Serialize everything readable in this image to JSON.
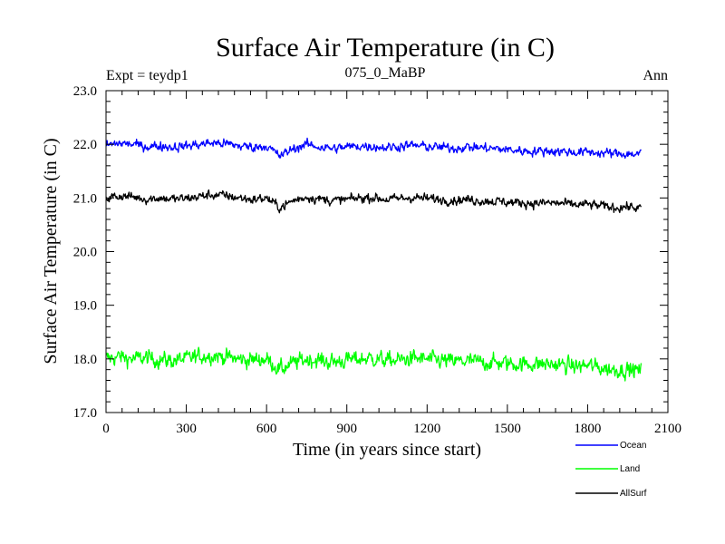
{
  "chart_data": {
    "type": "line",
    "title": "Surface Air Temperature (in C)",
    "subtitle": "075_0_MaBP",
    "left_label": "Expt = teydp1",
    "right_label": "Ann",
    "xlabel": "Time (in years since start)",
    "ylabel": "Surface Air Temperature (in C)",
    "xlim": [
      0,
      2100
    ],
    "ylim": [
      17.0,
      23.0
    ],
    "x_ticks": [
      "0",
      "300",
      "600",
      "900",
      "1200",
      "1500",
      "1800",
      "2100"
    ],
    "y_ticks": [
      "17.0",
      "18.0",
      "19.0",
      "20.0",
      "21.0",
      "22.0",
      "23.0"
    ],
    "x_range": [
      0,
      2000
    ],
    "series": [
      {
        "name": "Ocean",
        "color": "#0000ff",
        "noise": 0.07,
        "values": [
          21.98,
          22.02,
          22.0,
          21.96,
          21.97,
          21.95,
          21.97,
          22.0,
          22.03,
          22.01,
          21.97,
          21.95,
          21.97,
          21.78,
          21.92,
          22.0,
          21.95,
          21.92,
          21.95,
          21.97,
          21.96,
          21.94,
          21.97,
          21.98,
          21.96,
          21.94,
          21.93,
          21.95,
          21.94,
          21.92,
          21.9,
          21.88,
          21.87,
          21.88,
          21.87,
          21.85,
          21.86,
          21.84,
          21.83,
          21.82,
          21.82
        ]
      },
      {
        "name": "Land",
        "color": "#00ff00",
        "noise": 0.12,
        "values": [
          18.0,
          18.04,
          18.0,
          18.02,
          17.98,
          17.97,
          18.0,
          18.05,
          18.07,
          18.03,
          17.99,
          17.98,
          18.0,
          17.8,
          17.92,
          18.0,
          17.97,
          17.94,
          17.98,
          18.0,
          18.01,
          17.97,
          17.98,
          18.01,
          17.99,
          17.97,
          17.95,
          17.96,
          17.94,
          17.93,
          17.92,
          17.9,
          17.91,
          17.9,
          17.89,
          17.86,
          17.88,
          17.83,
          17.8,
          17.8,
          17.78
        ]
      },
      {
        "name": "AllSurf",
        "color": "#000000",
        "noise": 0.07,
        "values": [
          21.0,
          21.04,
          21.02,
          20.98,
          21.0,
          20.98,
          20.99,
          21.03,
          21.06,
          21.04,
          21.0,
          20.97,
          21.0,
          20.82,
          20.95,
          21.02,
          20.98,
          20.95,
          20.97,
          21.0,
          21.01,
          20.97,
          20.99,
          21.01,
          20.99,
          20.97,
          20.96,
          20.97,
          20.95,
          20.94,
          20.92,
          20.91,
          20.9,
          20.91,
          20.9,
          20.87,
          20.88,
          20.85,
          20.82,
          20.84,
          20.8
        ]
      }
    ],
    "legend": [
      "Ocean",
      "Land",
      "AllSurf"
    ],
    "legend_position": "bottom-right, outside plot"
  }
}
